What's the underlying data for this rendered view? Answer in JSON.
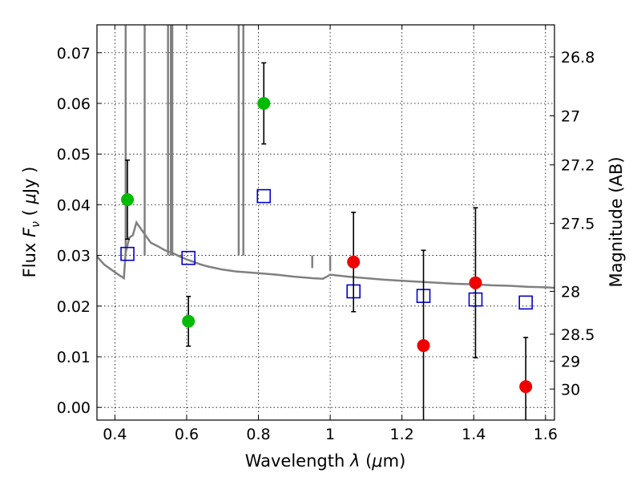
{
  "chart_data": {
    "type": "scatter",
    "xlabel": "Wavelength  λ (μm)",
    "ylabel": "Flux  F_ν  ( μJy )",
    "ylabel_parts": {
      "pre": "Flux  ",
      "var": "F",
      "sub": "ν",
      "mid": "  ( ",
      "unit_greek": "μ",
      "unit": "Jy )"
    },
    "xlabel_parts": {
      "pre": "Wavelength  ",
      "var": "λ",
      "mid": " (",
      "unit_greek": "μ",
      "unit": "m)"
    },
    "y2label": "Magnitude (AB)",
    "xlim": [
      0.35,
      1.625
    ],
    "ylim": [
      -0.0025,
      0.0755
    ],
    "xticks": [
      {
        "v": 0.4,
        "label": "0.4"
      },
      {
        "v": 0.6,
        "label": "0.6"
      },
      {
        "v": 0.8,
        "label": "0.8"
      },
      {
        "v": 1.0,
        "label": "1"
      },
      {
        "v": 1.2,
        "label": "1.2"
      },
      {
        "v": 1.4,
        "label": "1.4"
      },
      {
        "v": 1.6,
        "label": "1.6"
      }
    ],
    "yticks": [
      {
        "v": 0.0,
        "label": "0.00"
      },
      {
        "v": 0.01,
        "label": "0.01"
      },
      {
        "v": 0.02,
        "label": "0.02"
      },
      {
        "v": 0.03,
        "label": "0.03"
      },
      {
        "v": 0.04,
        "label": "0.04"
      },
      {
        "v": 0.05,
        "label": "0.05"
      },
      {
        "v": 0.06,
        "label": "0.06"
      },
      {
        "v": 0.07,
        "label": "0.07"
      }
    ],
    "y2ticks": [
      {
        "mag": 26.8,
        "label": "26.8"
      },
      {
        "mag": 27.0,
        "label": "27"
      },
      {
        "mag": 27.2,
        "label": "27.2"
      },
      {
        "mag": 27.5,
        "label": "27.5"
      },
      {
        "mag": 28.0,
        "label": "28"
      },
      {
        "mag": 28.5,
        "label": "28.5"
      },
      {
        "mag": 29.0,
        "label": "29"
      },
      {
        "mag": 30.0,
        "label": "30"
      }
    ],
    "grid": true,
    "series": [
      {
        "kind": "model-spectrum",
        "color": "#808080",
        "x": [
          0.35,
          0.37,
          0.39,
          0.41,
          0.425,
          0.43,
          0.44,
          0.45,
          0.46,
          0.47,
          0.48,
          0.49,
          0.5,
          0.52,
          0.54,
          0.56,
          0.58,
          0.6,
          0.62,
          0.64,
          0.66,
          0.68,
          0.7,
          0.72,
          0.74,
          0.76,
          0.8,
          0.85,
          0.9,
          0.95,
          0.98,
          1.0,
          1.05,
          1.1,
          1.15,
          1.2,
          1.25,
          1.3,
          1.35,
          1.4,
          1.45,
          1.5,
          1.55,
          1.6,
          1.625
        ],
        "y": [
          0.0298,
          0.0282,
          0.0272,
          0.0262,
          0.0255,
          0.0305,
          0.0335,
          0.034,
          0.0365,
          0.0355,
          0.0345,
          0.0335,
          0.0325,
          0.0318,
          0.031,
          0.0305,
          0.0298,
          0.0292,
          0.0287,
          0.0282,
          0.0278,
          0.0275,
          0.0272,
          0.027,
          0.0268,
          0.0267,
          0.0265,
          0.0262,
          0.0258,
          0.0255,
          0.0254,
          0.0262,
          0.0258,
          0.0255,
          0.0252,
          0.025,
          0.0248,
          0.0246,
          0.0244,
          0.0243,
          0.0241,
          0.024,
          0.0238,
          0.0237,
          0.0236
        ]
      },
      {
        "kind": "model-photometry",
        "marker": "open-square",
        "color": "#0000cc",
        "x": [
          0.435,
          0.605,
          0.815,
          1.065,
          1.26,
          1.405,
          1.545
        ],
        "y": [
          0.0303,
          0.0295,
          0.0417,
          0.0229,
          0.022,
          0.0213,
          0.0207
        ]
      },
      {
        "kind": "observed",
        "marker": "filled-circle",
        "color": "#00bb00",
        "x": [
          0.435,
          0.605,
          0.815
        ],
        "y": [
          0.041,
          0.017,
          0.06
        ],
        "err": [
          0.0078,
          0.0049,
          0.008
        ]
      },
      {
        "kind": "observed",
        "marker": "filled-circle",
        "color": "#ee0000",
        "x": [
          1.065,
          1.26,
          1.405,
          1.545
        ],
        "y": [
          0.0287,
          0.0122,
          0.0246,
          0.0041
        ],
        "err": [
          0.0098,
          0.0188,
          0.0148,
          0.0097
        ]
      }
    ]
  }
}
